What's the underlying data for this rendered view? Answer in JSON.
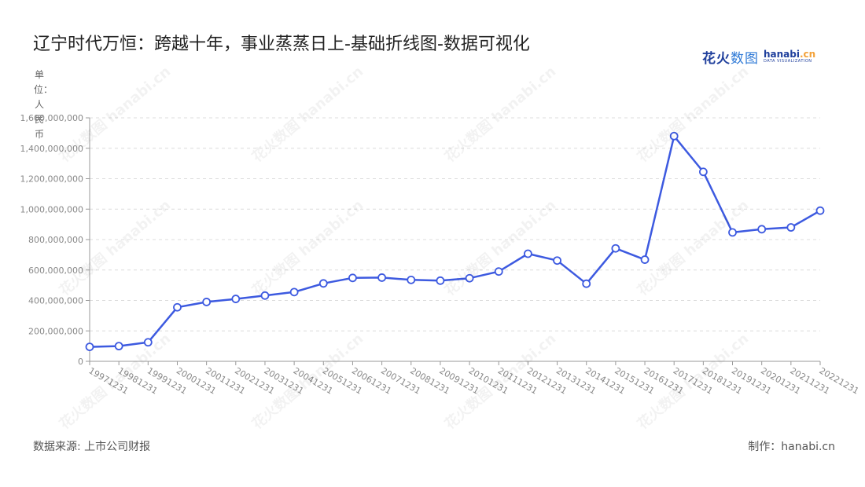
{
  "title": "辽宁时代万恒：跨越十年，事业蒸蒸日上-基础折线图-数据可视化",
  "brand": {
    "cn_bold": "花火",
    "cn_light": "数图",
    "en_main": "hanabi",
    "en_accent": ".cn",
    "en_sub": "DATA VISUALIZATION"
  },
  "unit_label": "单位：人民币",
  "source": "数据来源: 上市公司财报",
  "maker": "制作：hanabi.cn",
  "watermark_text": "花火数图 hanabi.cn",
  "colors": {
    "line": "#3d5ae0",
    "grid": "#dcdcdc",
    "axis": "#999999",
    "tick_text": "#888888"
  },
  "chart_data": {
    "type": "line",
    "title": "辽宁时代万恒：跨越十年，事业蒸蒸日上-基础折线图-数据可视化",
    "ylabel": "单位：人民币",
    "xlabel": "",
    "categories": [
      "19971231",
      "19981231",
      "19991231",
      "20001231",
      "20011231",
      "20021231",
      "20031231",
      "20041231",
      "20051231",
      "20061231",
      "20071231",
      "20081231",
      "20091231",
      "20101231",
      "20111231",
      "20121231",
      "20131231",
      "20141231",
      "20151231",
      "20161231",
      "20171231",
      "20181231",
      "20191231",
      "20201231",
      "20211231",
      "20221231"
    ],
    "series": [
      {
        "values": [
          95000000,
          100000000,
          125000000,
          355000000,
          390000000,
          410000000,
          432000000,
          455000000,
          512000000,
          548000000,
          550000000,
          535000000,
          530000000,
          546000000,
          590000000,
          707000000,
          662000000,
          510000000,
          742000000,
          668000000,
          1480000000,
          1245000000,
          847000000,
          868000000,
          880000000,
          990000000
        ]
      }
    ],
    "ylim": [
      0,
      1600000000
    ],
    "yticks": [
      0,
      200000000,
      400000000,
      600000000,
      800000000,
      1000000000,
      1200000000,
      1400000000,
      1600000000
    ],
    "ytick_labels": [
      "0",
      "200,000,000",
      "400,000,000",
      "600,000,000",
      "800,000,000",
      "1,000,000,000",
      "1,200,000,000",
      "1,400,000,000",
      "1,600,000,000"
    ],
    "grid": true,
    "legend": "none"
  }
}
